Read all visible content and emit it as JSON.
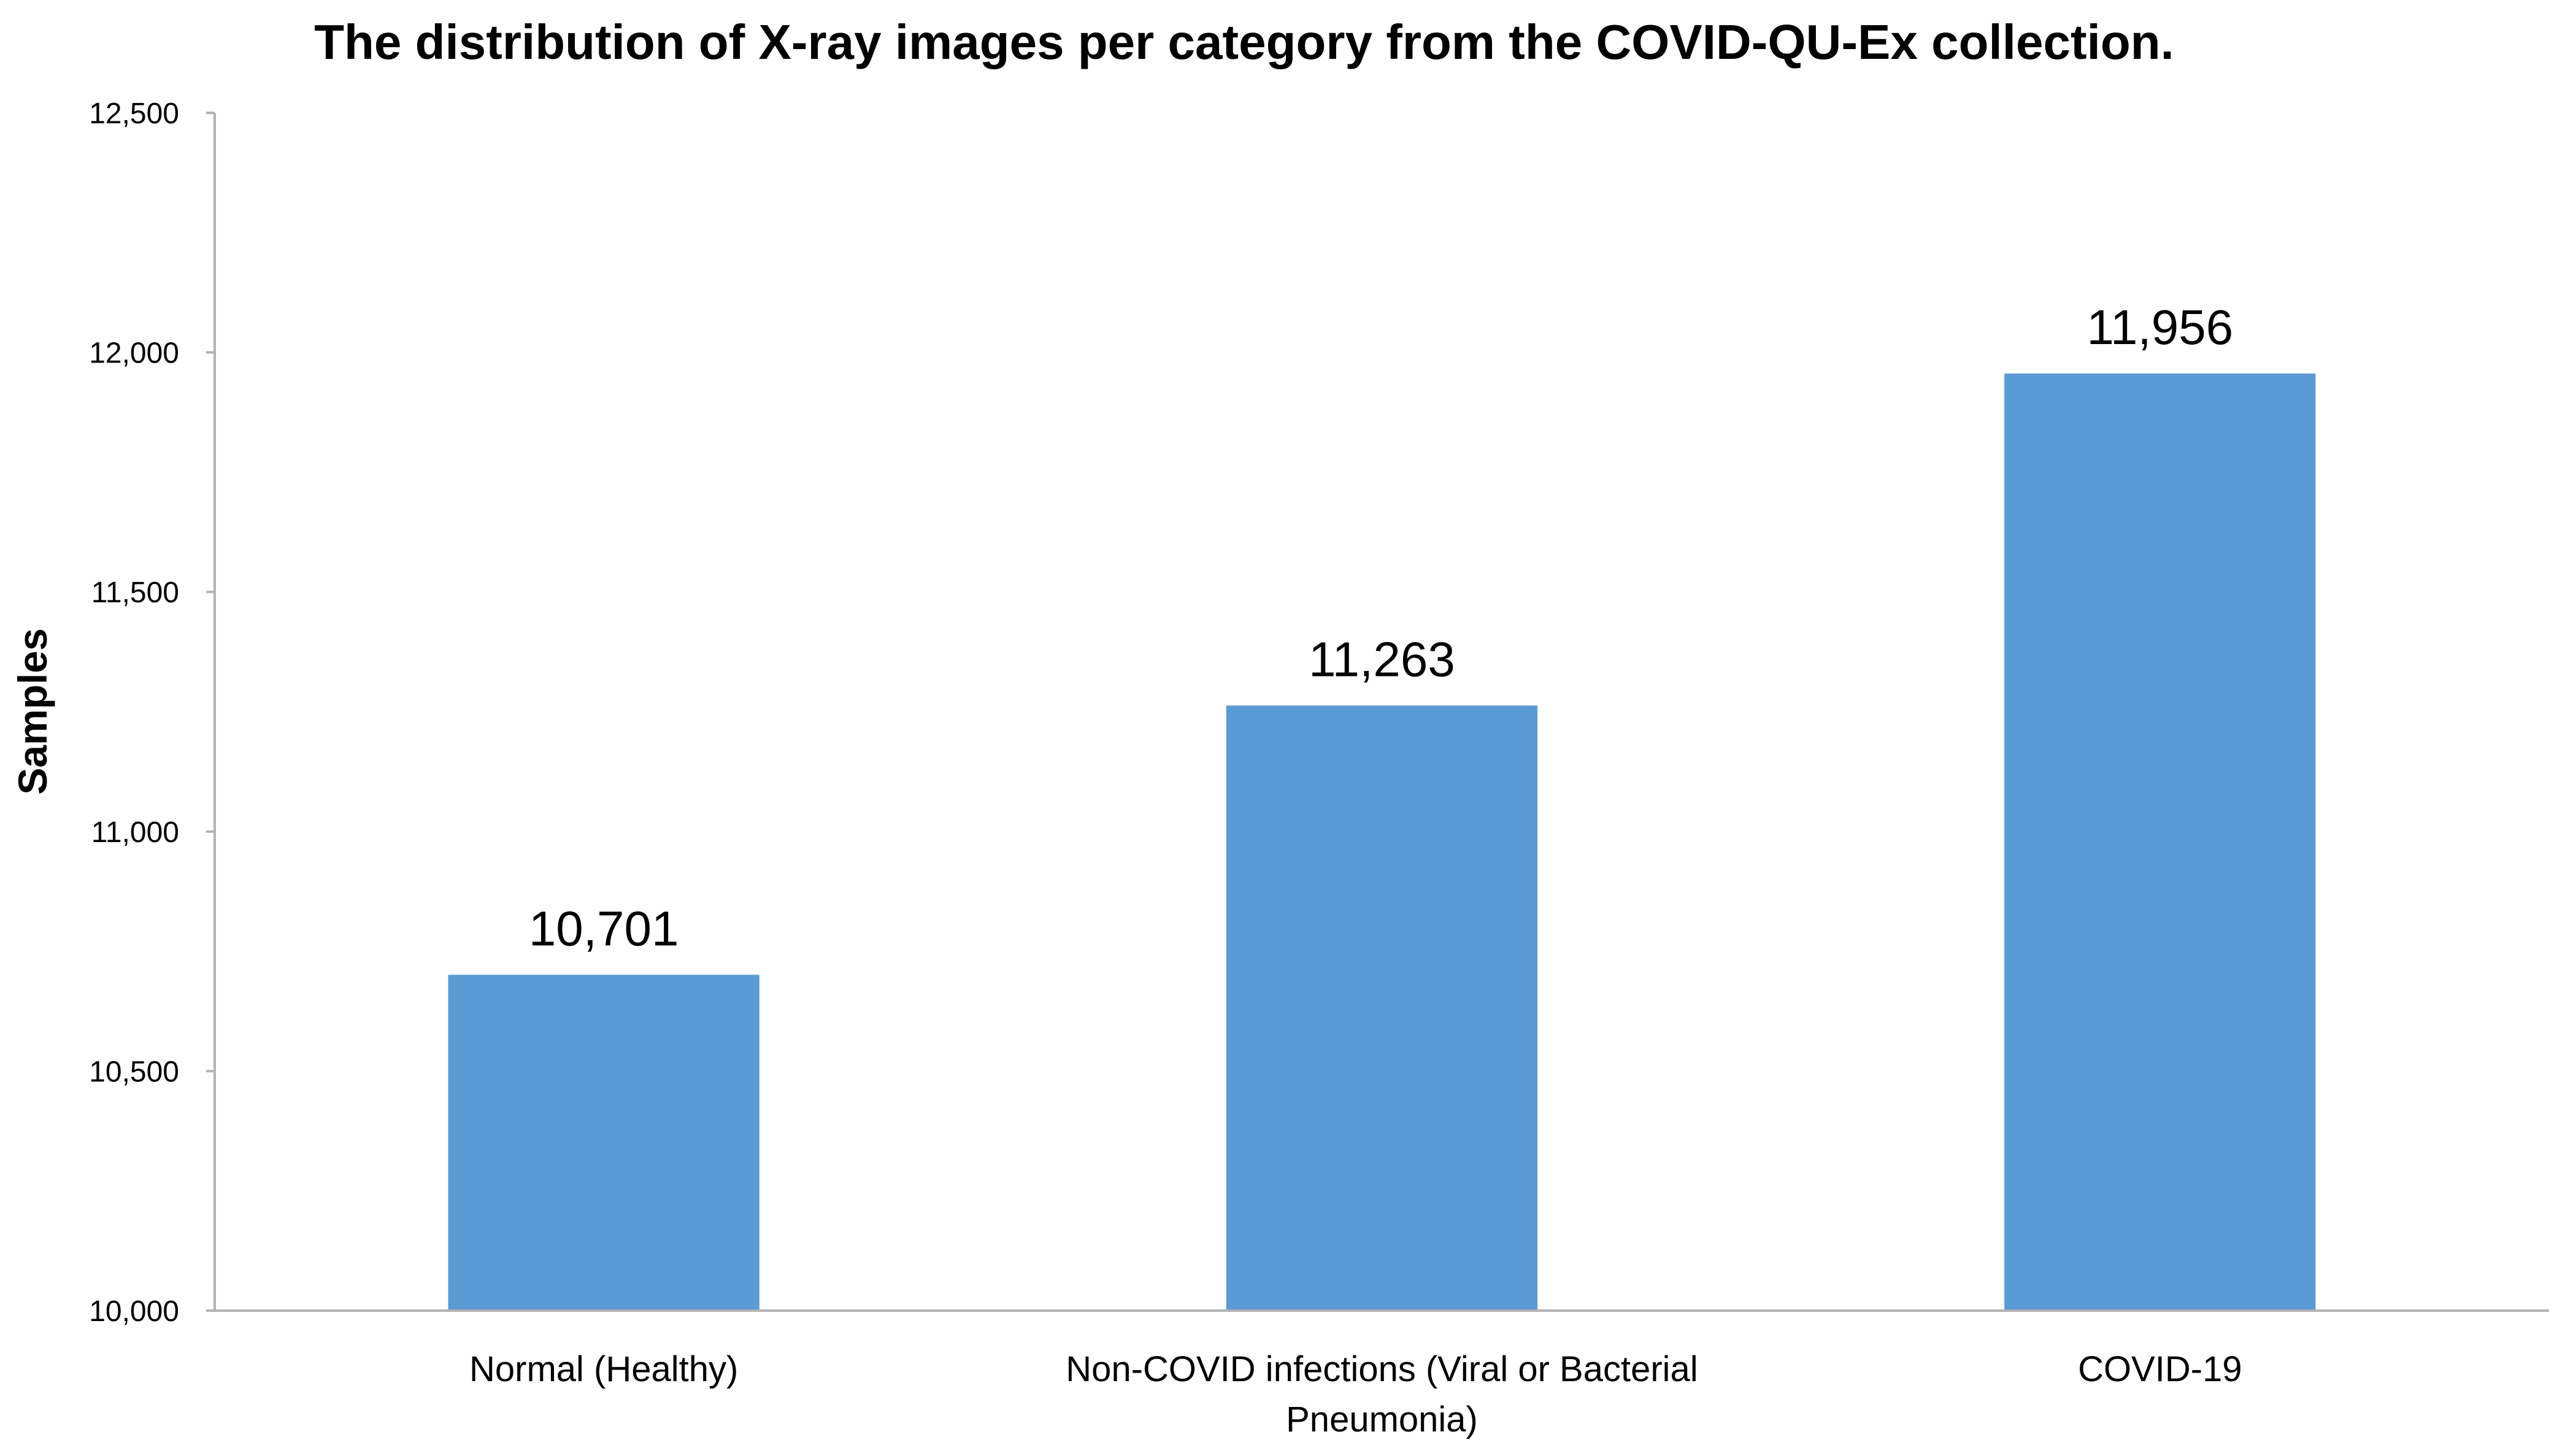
{
  "chart_data": {
    "type": "bar",
    "title": "The distribution of X-ray images per category from the COVID-QU-Ex collection.",
    "xlabel": "",
    "ylabel": "Samples",
    "categories": [
      [
        "Normal (Healthy)"
      ],
      [
        "Non-COVID infections (Viral or Bacterial",
        "Pneumonia)"
      ],
      [
        "COVID-19"
      ]
    ],
    "values": [
      10701,
      11263,
      11956
    ],
    "data_labels": [
      "10,701",
      "11,263",
      "11,956"
    ],
    "ylim": [
      10000,
      12500
    ],
    "yticks": [
      10000,
      10500,
      11000,
      11500,
      12000,
      12500
    ],
    "ytick_labels": [
      "10,000",
      "10,500",
      "11,000",
      "11,500",
      "12,000",
      "12,500"
    ],
    "grid": false,
    "legend": "none",
    "bar_color": "#5b9bd5"
  }
}
